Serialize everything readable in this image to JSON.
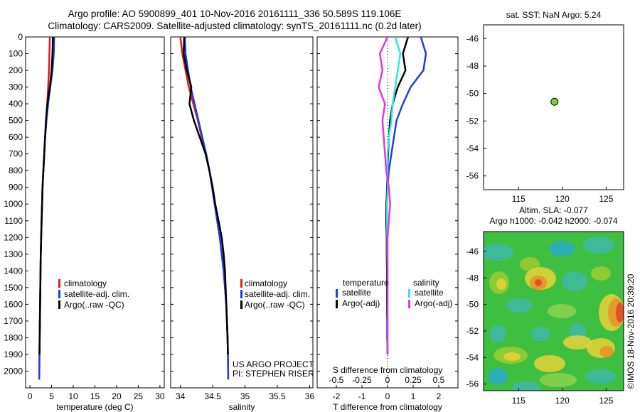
{
  "header": {
    "line1": "Argo profile: AO 5900899_401 10-Nov-2016 20161111_336 50.589S 119.106E",
    "line2": "Climatology: CARS2009. Satellite-adjusted climatology: synTS_20161111.nc (0.2d later)"
  },
  "credits": {
    "project": "US ARGO PROJECT",
    "pi": "PI: STEPHEN RISER",
    "imos": "©IMOS 18-Nov-2016 20:39:20"
  },
  "colors": {
    "climatology": "#e31a1c",
    "satellite": "#1f3de0",
    "argo": "#000000",
    "sal_satellite": "#33e6e6",
    "sal_argo": "#e633e6",
    "point": "#7ad12a"
  },
  "chart_data": [
    {
      "id": "temp",
      "type": "line",
      "xlabel": "temperature (deg C)",
      "ylabel": "",
      "xlim": [
        -1,
        31
      ],
      "ylim": [
        2100,
        0
      ],
      "xticks": [
        0,
        5,
        10,
        15,
        20,
        25,
        30
      ],
      "yticks": [
        0,
        100,
        200,
        300,
        400,
        500,
        600,
        700,
        800,
        900,
        1000,
        1100,
        1200,
        1300,
        1400,
        1500,
        1600,
        1700,
        1800,
        1900,
        2000
      ],
      "legend": [
        "climatology",
        "satellite-adj. clim.",
        "Argo(..raw -QC)"
      ],
      "series": [
        {
          "name": "climatology",
          "color": "#e31a1c",
          "x": [
            4.6,
            4.5,
            4.4,
            4.2,
            4.0,
            3.8,
            3.5,
            3.3,
            3.1,
            2.9,
            2.8,
            2.7,
            2.6,
            2.5,
            2.45,
            2.4,
            2.35,
            2.3,
            2.25,
            2.2,
            2.15
          ],
          "y": [
            0,
            100,
            200,
            300,
            400,
            500,
            600,
            700,
            800,
            900,
            1000,
            1100,
            1200,
            1300,
            1400,
            1500,
            1600,
            1700,
            1800,
            1900,
            2050
          ]
        },
        {
          "name": "satellite-adj. clim.",
          "color": "#1f3de0",
          "x": [
            5.6,
            5.5,
            5.2,
            4.7,
            4.2,
            3.8,
            3.5,
            3.3,
            3.1,
            2.9,
            2.8,
            2.7,
            2.6,
            2.5,
            2.45,
            2.4,
            2.35,
            2.3,
            2.25,
            2.2,
            2.15
          ],
          "y": [
            0,
            100,
            200,
            300,
            400,
            500,
            600,
            700,
            800,
            900,
            1000,
            1100,
            1200,
            1300,
            1400,
            1500,
            1600,
            1700,
            1800,
            1900,
            2050
          ]
        },
        {
          "name": "Argo(..raw -QC)",
          "color": "#000000",
          "x": [
            5.3,
            5.2,
            5.0,
            4.6,
            4.0,
            3.7,
            3.5,
            3.3,
            3.1,
            2.9,
            2.8,
            2.7,
            2.6,
            2.5,
            2.45,
            2.4,
            2.35,
            2.3,
            2.25,
            2.2
          ],
          "y": [
            0,
            100,
            200,
            300,
            400,
            500,
            600,
            700,
            800,
            900,
            1000,
            1100,
            1200,
            1300,
            1400,
            1500,
            1600,
            1700,
            1800,
            1900
          ]
        }
      ]
    },
    {
      "id": "sal",
      "type": "line",
      "xlabel": "salinity",
      "ylabel": "",
      "xlim": [
        33.85,
        36.05
      ],
      "ylim": [
        2100,
        0
      ],
      "xticks": [
        34,
        34.5,
        35,
        35.5,
        36
      ],
      "legend": [
        "climatology",
        "satellite-adj. clim.",
        "Argo(..raw -QC)"
      ],
      "series": [
        {
          "name": "climatology",
          "color": "#e31a1c",
          "x": [
            34.0,
            34.03,
            34.08,
            34.13,
            34.2,
            34.27,
            34.33,
            34.39,
            34.45,
            34.49,
            34.53,
            34.57,
            34.61,
            34.64,
            34.67,
            34.69,
            34.71,
            34.72,
            34.73,
            34.735,
            34.74
          ],
          "y": [
            0,
            100,
            200,
            300,
            400,
            500,
            600,
            700,
            800,
            900,
            1000,
            1100,
            1200,
            1300,
            1400,
            1500,
            1600,
            1700,
            1800,
            1900,
            2050
          ]
        },
        {
          "name": "satellite-adj. clim.",
          "color": "#1f3de0",
          "x": [
            34.07,
            34.08,
            34.12,
            34.16,
            34.22,
            34.28,
            34.34,
            34.4,
            34.45,
            34.49,
            34.53,
            34.57,
            34.61,
            34.64,
            34.67,
            34.69,
            34.71,
            34.72,
            34.73,
            34.735,
            34.74
          ],
          "y": [
            0,
            100,
            200,
            300,
            400,
            500,
            600,
            700,
            800,
            900,
            1000,
            1100,
            1200,
            1300,
            1400,
            1500,
            1600,
            1700,
            1800,
            1900,
            2050
          ]
        },
        {
          "name": "Argo(..raw -QC)",
          "color": "#000000",
          "x": [
            34.06,
            34.05,
            34.1,
            34.17,
            34.14,
            34.21,
            34.3,
            34.39,
            34.45,
            34.5,
            34.54,
            34.59,
            34.64,
            34.67,
            34.69,
            34.7,
            34.71,
            34.72,
            34.73,
            34.735
          ],
          "y": [
            0,
            100,
            200,
            300,
            400,
            500,
            600,
            700,
            800,
            900,
            1000,
            1100,
            1200,
            1300,
            1400,
            1500,
            1600,
            1700,
            1800,
            1900
          ]
        }
      ]
    },
    {
      "id": "diff",
      "type": "line",
      "xlabel": "T difference from climatology",
      "xlabel_top": "S difference from climatology",
      "xlim": [
        -2.75,
        2.75
      ],
      "ylim": [
        2100,
        0
      ],
      "xticks": [
        -2,
        -1,
        0,
        1,
        2
      ],
      "xtick_labels_top": [
        "-0.5",
        "-0.25",
        "0",
        "0.25",
        "0.5"
      ],
      "xtick_top_positions": [
        -2,
        -1,
        0,
        1,
        2
      ],
      "legend_titles": [
        "temperature",
        "salinity"
      ],
      "legend": [
        "satellite",
        "Argo(-adj)",
        "satellite",
        "Argo(-adj)"
      ],
      "series": [
        {
          "name": "satellite",
          "group": "temperature",
          "color": "#1f3de0",
          "x": [
            1.3,
            1.5,
            1.4,
            0.9,
            0.6,
            0.35,
            0.25,
            0.15,
            0.05,
            0.0,
            -0.05,
            -0.05,
            -0.03,
            -0.03,
            -0.02,
            -0.02,
            -0.02,
            -0.01,
            -0.01,
            0.0
          ],
          "y": [
            0,
            100,
            200,
            300,
            400,
            500,
            600,
            700,
            800,
            900,
            1000,
            1100,
            1200,
            1300,
            1400,
            1500,
            1600,
            1700,
            1800,
            1900
          ]
        },
        {
          "name": "Argo(-adj)",
          "group": "temperature",
          "color": "#000000",
          "x": [
            0.8,
            0.6,
            0.7,
            0.4,
            0.2,
            0.1,
            0.05,
            0.02,
            0.0,
            -0.02,
            -0.04,
            -0.05,
            -0.03,
            -0.03,
            -0.02,
            -0.02,
            -0.02,
            -0.01,
            -0.01,
            0.0
          ],
          "y": [
            0,
            100,
            200,
            300,
            400,
            500,
            600,
            700,
            800,
            900,
            1000,
            1100,
            1200,
            1300,
            1400,
            1500,
            1600,
            1700,
            1800,
            1900
          ]
        },
        {
          "name": "satellite",
          "group": "salinity",
          "color": "#33e6e6",
          "x": [
            0.3,
            0.5,
            0.4,
            0.3,
            0.2,
            0.15,
            0.05,
            0.0,
            0.0,
            0.0,
            -0.02,
            -0.02,
            -0.01,
            -0.01,
            0.0,
            0.0,
            0.0,
            0.0,
            0.0,
            0.0
          ],
          "y": [
            0,
            100,
            200,
            300,
            400,
            500,
            600,
            700,
            800,
            900,
            1000,
            1100,
            1200,
            1300,
            1400,
            1500,
            1600,
            1700,
            1800,
            1900
          ]
        },
        {
          "name": "Argo(-adj)",
          "group": "salinity",
          "color": "#e633e6",
          "x": [
            0.0,
            -0.3,
            -0.2,
            -0.35,
            -0.1,
            -0.2,
            -0.15,
            -0.1,
            -0.05,
            0.05,
            0.1,
            0.05,
            0.0,
            0.0,
            0.0,
            0.0,
            0.0,
            0.0,
            0.0,
            0.0
          ],
          "y": [
            0,
            100,
            200,
            300,
            400,
            500,
            600,
            700,
            800,
            900,
            1000,
            1100,
            1200,
            1300,
            1400,
            1500,
            1600,
            1700,
            1800,
            1900
          ]
        }
      ]
    },
    {
      "id": "map1",
      "type": "scatter",
      "title": "sat. SST: NaN Argo: 5.24",
      "xlim": [
        111,
        127
      ],
      "ylim": [
        -57,
        -45
      ],
      "xticks": [
        115,
        120,
        125
      ],
      "yticks": [
        -46,
        -48,
        -50,
        -52,
        -54,
        -56
      ],
      "points": [
        {
          "x": 119.1,
          "y": -50.6
        }
      ]
    },
    {
      "id": "map2",
      "type": "heatmap",
      "title1": "Altim. SLA: -0.077",
      "title2": "Argo h1000: -0.042 h2000: -0.074",
      "xlim": [
        111,
        127
      ],
      "ylim": [
        -56.5,
        -44.5
      ],
      "xticks": [
        115,
        120,
        125
      ],
      "yticks": [
        -46,
        -48,
        -50,
        -52,
        -54,
        -56
      ]
    }
  ]
}
